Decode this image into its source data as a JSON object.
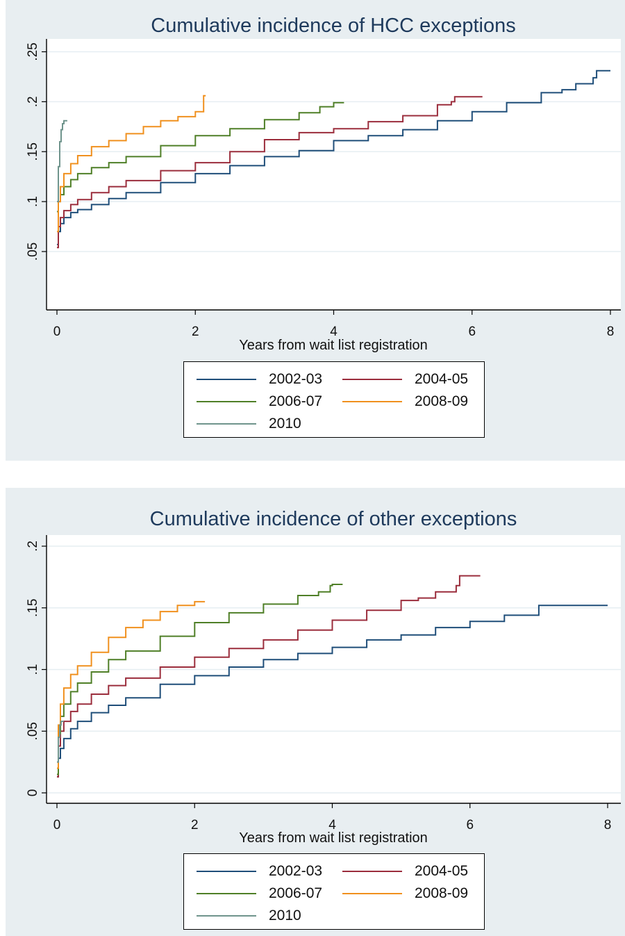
{
  "legend_entries": [
    {
      "label": "2002-03",
      "color": "#1f4e79"
    },
    {
      "label": "2004-05",
      "color": "#9b2d3c"
    },
    {
      "label": "2006-07",
      "color": "#4f7f27"
    },
    {
      "label": "2008-09",
      "color": "#f0901e"
    },
    {
      "label": "2010",
      "color": "#6f948c"
    }
  ],
  "chart_data": [
    {
      "type": "line",
      "step": true,
      "title": "Cumulative incidence of HCC exceptions",
      "xlabel": "Years from wait list registration",
      "ylabel": "",
      "xlim": [
        0,
        8
      ],
      "ylim": [
        0,
        0.25
      ],
      "xticks": [
        0,
        2,
        4,
        6,
        8
      ],
      "xtick_labels": [
        "0",
        "2",
        "4",
        "6",
        "8"
      ],
      "yticks": [
        0.05,
        0.1,
        0.15,
        0.2,
        0.25
      ],
      "ytick_labels": [
        ".05",
        ".1",
        ".15",
        ".2",
        ".25"
      ],
      "grid": true,
      "legend": "bottom",
      "series": [
        {
          "name": "2002-03",
          "color": "#1f4e79",
          "x": [
            0,
            0.02,
            0.05,
            0.1,
            0.2,
            0.3,
            0.5,
            0.75,
            1,
            1.5,
            2,
            2.5,
            3,
            3.5,
            4,
            4.5,
            5,
            5.5,
            6,
            6.5,
            7,
            7.3,
            7.5,
            7.75,
            7.8,
            8
          ],
          "y": [
            0.057,
            0.07,
            0.078,
            0.084,
            0.089,
            0.092,
            0.097,
            0.103,
            0.109,
            0.119,
            0.128,
            0.136,
            0.145,
            0.151,
            0.161,
            0.166,
            0.172,
            0.181,
            0.19,
            0.199,
            0.209,
            0.212,
            0.218,
            0.224,
            0.231,
            0.231
          ]
        },
        {
          "name": "2004-05",
          "color": "#9b2d3c",
          "x": [
            0,
            0.02,
            0.05,
            0.1,
            0.2,
            0.3,
            0.5,
            0.75,
            1,
            1.5,
            2,
            2.5,
            3,
            3.5,
            4,
            4.5,
            5,
            5.5,
            5.7,
            5.75,
            6.15
          ],
          "y": [
            0.054,
            0.075,
            0.084,
            0.091,
            0.097,
            0.102,
            0.109,
            0.115,
            0.121,
            0.131,
            0.139,
            0.15,
            0.162,
            0.169,
            0.173,
            0.18,
            0.186,
            0.197,
            0.2,
            0.205,
            0.205
          ]
        },
        {
          "name": "2006-07",
          "color": "#4f7f27",
          "x": [
            0,
            0.02,
            0.05,
            0.1,
            0.2,
            0.3,
            0.5,
            0.75,
            1,
            1.5,
            2,
            2.5,
            3,
            3.5,
            3.8,
            4,
            4.15
          ],
          "y": [
            0.09,
            0.1,
            0.107,
            0.115,
            0.122,
            0.128,
            0.134,
            0.139,
            0.145,
            0.156,
            0.166,
            0.173,
            0.182,
            0.189,
            0.195,
            0.199,
            0.199
          ]
        },
        {
          "name": "2008-09",
          "color": "#f0901e",
          "x": [
            0,
            0.02,
            0.05,
            0.1,
            0.2,
            0.3,
            0.5,
            0.75,
            1,
            1.25,
            1.5,
            1.75,
            2,
            2.1,
            2.12,
            2.15
          ],
          "y": [
            0.07,
            0.1,
            0.115,
            0.128,
            0.138,
            0.146,
            0.155,
            0.161,
            0.168,
            0.175,
            0.181,
            0.185,
            0.19,
            0.19,
            0.206,
            0.206
          ]
        },
        {
          "name": "2010",
          "color": "#6f948c",
          "x": [
            0,
            0.02,
            0.04,
            0.06,
            0.08,
            0.1,
            0.15
          ],
          "y": [
            0.1,
            0.135,
            0.16,
            0.172,
            0.178,
            0.181,
            0.181
          ]
        }
      ]
    },
    {
      "type": "line",
      "step": true,
      "title": "Cumulative incidence of other exceptions",
      "xlabel": "Years from wait list registration",
      "ylabel": "",
      "xlim": [
        0,
        8
      ],
      "ylim": [
        0,
        0.2
      ],
      "xticks": [
        0,
        2,
        4,
        6,
        8
      ],
      "xtick_labels": [
        "0",
        "2",
        "4",
        "6",
        "8"
      ],
      "yticks": [
        0,
        0.05,
        0.1,
        0.15,
        0.2
      ],
      "ytick_labels": [
        "0",
        ".05",
        ".1",
        ".15",
        ".2"
      ],
      "grid": true,
      "legend": "bottom",
      "series": [
        {
          "name": "2002-03",
          "color": "#1f4e79",
          "x": [
            0,
            0.02,
            0.05,
            0.1,
            0.2,
            0.3,
            0.5,
            0.75,
            1,
            1.5,
            2,
            2.5,
            3,
            3.5,
            4,
            4.5,
            5,
            5.5,
            6,
            6.5,
            7,
            7.5,
            8
          ],
          "y": [
            0.013,
            0.028,
            0.036,
            0.044,
            0.052,
            0.058,
            0.065,
            0.071,
            0.077,
            0.088,
            0.095,
            0.102,
            0.108,
            0.113,
            0.118,
            0.124,
            0.128,
            0.134,
            0.139,
            0.144,
            0.152,
            0.152,
            0.152
          ]
        },
        {
          "name": "2004-05",
          "color": "#9b2d3c",
          "x": [
            0,
            0.02,
            0.05,
            0.1,
            0.2,
            0.3,
            0.5,
            0.75,
            1,
            1.5,
            2,
            2.5,
            3,
            3.5,
            4,
            4.5,
            5,
            5.25,
            5.5,
            5.8,
            5.85,
            6.15
          ],
          "y": [
            0.013,
            0.038,
            0.05,
            0.058,
            0.066,
            0.072,
            0.08,
            0.087,
            0.093,
            0.102,
            0.11,
            0.117,
            0.124,
            0.132,
            0.14,
            0.148,
            0.156,
            0.158,
            0.163,
            0.168,
            0.176,
            0.176
          ]
        },
        {
          "name": "2006-07",
          "color": "#4f7f27",
          "x": [
            0,
            0.02,
            0.05,
            0.1,
            0.2,
            0.3,
            0.5,
            0.75,
            1,
            1.5,
            2,
            2.5,
            3,
            3.5,
            3.8,
            3.97,
            4,
            4.15
          ],
          "y": [
            0.015,
            0.048,
            0.062,
            0.072,
            0.082,
            0.089,
            0.098,
            0.108,
            0.115,
            0.127,
            0.138,
            0.146,
            0.153,
            0.16,
            0.163,
            0.168,
            0.169,
            0.169
          ]
        },
        {
          "name": "2008-09",
          "color": "#f0901e",
          "x": [
            0,
            0.02,
            0.05,
            0.1,
            0.2,
            0.3,
            0.5,
            0.75,
            1,
            1.25,
            1.5,
            1.75,
            2,
            2.15
          ],
          "y": [
            0.02,
            0.055,
            0.072,
            0.085,
            0.096,
            0.103,
            0.114,
            0.126,
            0.134,
            0.14,
            0.147,
            0.152,
            0.155,
            0.155
          ]
        },
        {
          "name": "2010",
          "color": "#6f948c",
          "x": [
            0,
            0.02,
            0.04,
            0.06,
            0.1
          ],
          "y": [
            0.025,
            0.045,
            0.055,
            0.058,
            0.058
          ]
        }
      ]
    }
  ]
}
